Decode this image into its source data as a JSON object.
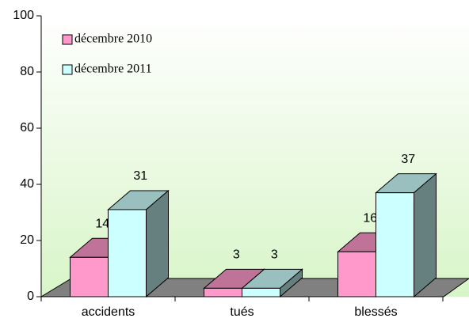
{
  "chart_data": {
    "type": "bar3d",
    "categories": [
      "accidents",
      "tués",
      "blessés"
    ],
    "series": [
      {
        "name": "décembre 2010",
        "color": "#ff99cc",
        "values": [
          14,
          3,
          16
        ]
      },
      {
        "name": "décembre 2011",
        "color": "#ccffff",
        "values": [
          31,
          3,
          37
        ]
      }
    ],
    "ylim": [
      0,
      100
    ],
    "yticks": [
      0,
      20,
      40,
      60,
      80,
      100
    ],
    "legend": "top-left"
  }
}
